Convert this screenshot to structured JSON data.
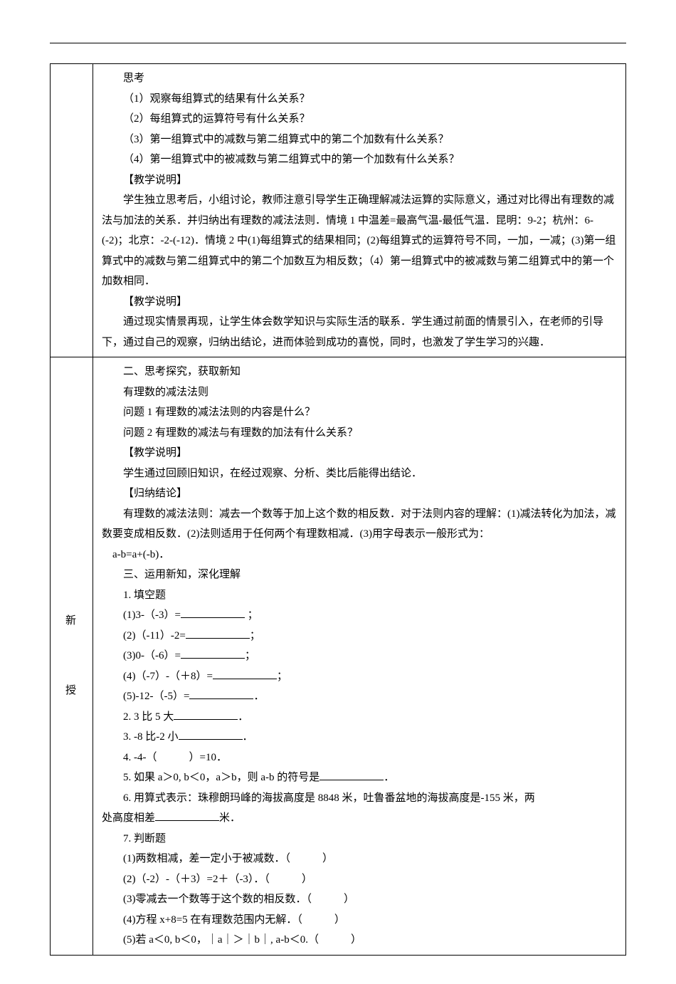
{
  "topLine": true,
  "row1": {
    "p1": "思考",
    "q1": "（1）观察每组算式的结果有什么关系？",
    "q2": "（2）每组算式的运算符号有什么关系？",
    "q3": "（3）第一组算式中的减数与第二组算式中的第二个加数有什么关系？",
    "q4": "（4）第一组算式中的被减数与第二组算式中的第一个加数有什么关系？",
    "note1": "【教学说明】",
    "body1": "学生独立思考后，小组讨论，教师注意引导学生正确理解减法运算的实际意义，通过对比得出有理数的减法与加法的关系．并归纳出有理数的减法法则．情境 1 中温差=最高气温-最低气温．昆明：9-2；杭州：6-(-2)；北京：-2-(-12)．情境 2 中(1)每组算式的结果相同；(2)每组算式的运算符号不同，一加，一减；(3)第一组算式中的减数与第二组算式中的第二个加数互为相反数；（4）第一组算式中的被减数与第二组算式中的第一个加数相同．",
    "note2": "【教学说明】",
    "body2": "通过现实情景再现，让学生体会数学知识与实际生活的联系．学生通过前面的情景引入，在老师的引导下，通过自己的观察，归纳出结论，进而体验到成功的喜悦，同时，也激发了学生学习的兴趣．"
  },
  "row2": {
    "leftChars": [
      "新",
      "授"
    ],
    "h2": "二、思考探究，获取新知",
    "l1": "有理数的减法法则",
    "l2": "问题 1 有理数的减法法则的内容是什么？",
    "l3": "问题 2 有理数的减法与有理数的加法有什么关系？",
    "note1": "【教学说明】",
    "l4": "学生通过回顾旧知识，在经过观察、分析、类比后能得出结论．",
    "note2": "【归纳结论】",
    "body1": "有理数的减法法则：减去一个数等于加上这个数的相反数．对于法则内容的理解：(1)减法转化为加法，减数要变成相反数．(2)法则适用于任何两个有理数相减．(3)用字母表示一般形式为：",
    "eq": "a-b=a+(-b)．",
    "h3": "三、运用新知，深化理解",
    "f1": "1. 填空题",
    "f1a": "(1)3-（-3）=",
    "f1a_suffix": "；",
    "f1b": "(2)（-11）-2=",
    "f1b_suffix": "；",
    "f1c": "(3)0-（-6）=",
    "f1c_suffix": "；",
    "f1d": "(4)（-7）-（＋8）=",
    "f1d_suffix": "；",
    "f1e": "(5)-12-（-5）=",
    "f1e_suffix": "．",
    "f2": "2. 3 比 5 大",
    "f2_suffix": "．",
    "f3": "3. -8 比-2 小",
    "f3_suffix": "．",
    "f4": "4. -4-（　　　）=10．",
    "f5": "5. 如果 a＞0, b＜0，a＞b，则 a-b 的符号是",
    "f5_suffix": "．",
    "f6a": "6. 用算式表示：珠穆朗玛峰的海拔高度是 8848 米，吐鲁番盆地的海拔高度是-155 米，两",
    "f6b_prefix": "处高度相差",
    "f6b_suffix": "米．",
    "f7": "7. 判断题",
    "f7a": "(1)两数相减，差一定小于被减数．（　　　）",
    "f7b": "(2)（-2）-（＋3）=2＋（-3）．（　　　）",
    "f7c": "(3)零减去一个数等于这个数的相反数．（　　　）",
    "f7d": "(4)方程 x+8=5 在有理数范围内无解．（　　　）",
    "f7e": "(5)若 a＜0, b＜0，｜a｜＞｜b｜, a-b＜0.（　　　）"
  },
  "colors": {
    "text": "#000000",
    "bg": "#ffffff",
    "border": "#000000"
  }
}
